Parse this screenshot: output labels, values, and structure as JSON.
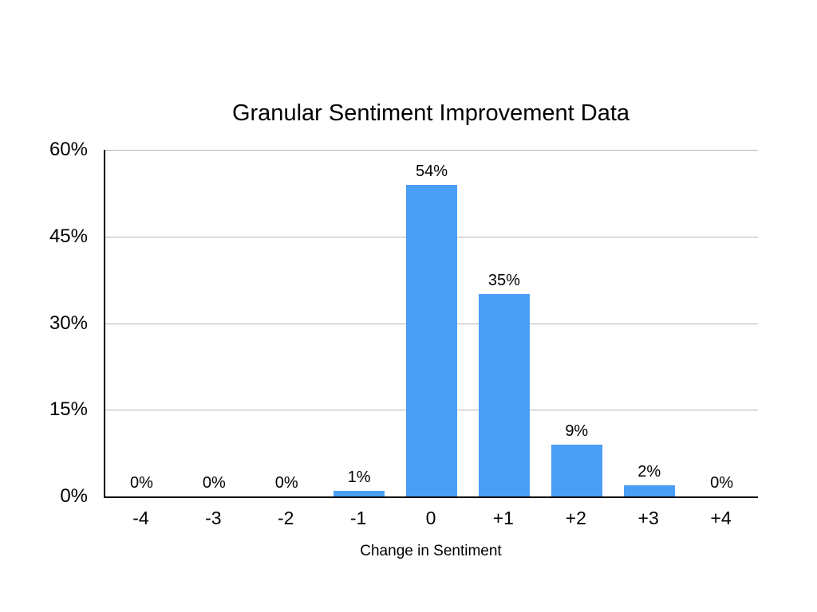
{
  "chart_data": {
    "type": "bar",
    "title": "Granular Sentiment Improvement Data",
    "xlabel": "Change in Sentiment",
    "ylabel": "",
    "categories": [
      "-4",
      "-3",
      "-2",
      "-1",
      "0",
      "+1",
      "+2",
      "+3",
      "+4"
    ],
    "values": [
      0,
      0,
      0,
      1,
      54,
      35,
      9,
      2,
      0
    ],
    "value_labels": [
      "0%",
      "0%",
      "0%",
      "1%",
      "54%",
      "35%",
      "9%",
      "2%",
      "0%"
    ],
    "y_ticks": [
      {
        "label": "0%",
        "value": 0
      },
      {
        "label": "15%",
        "value": 15
      },
      {
        "label": "30%",
        "value": 30
      },
      {
        "label": "45%",
        "value": 45
      },
      {
        "label": "60%",
        "value": 60
      }
    ],
    "ylim": [
      0,
      60
    ],
    "grid": "horizontal",
    "legend_position": "none",
    "colors": {
      "bar": "#4a9ef5",
      "gridline": "#b3b3b3",
      "axis": "#000000",
      "text": "#000000",
      "background": "#ffffff"
    }
  }
}
